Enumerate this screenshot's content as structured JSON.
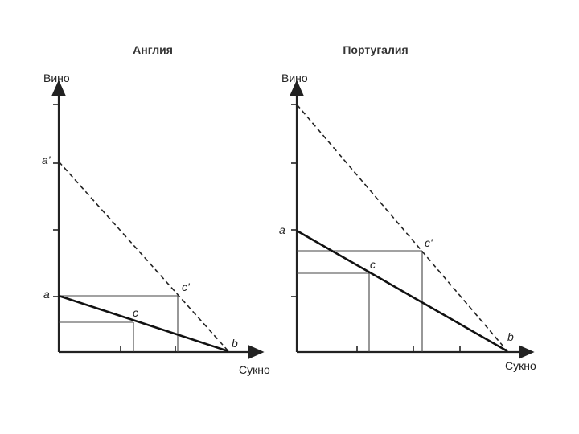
{
  "panels": {
    "england": {
      "title": "Англия",
      "y_axis_label": "Вино",
      "x_axis_label": "Сукно",
      "labels": {
        "a_prime": "a'",
        "a": "a",
        "c": "c",
        "c_prime": "c'",
        "b": "b"
      }
    },
    "portugal": {
      "title": "Португалия",
      "y_axis_label": "Вино",
      "x_axis_label": "Сукно",
      "labels": {
        "a": "a",
        "c": "c",
        "c_prime": "c'",
        "b": "b"
      }
    }
  }
}
